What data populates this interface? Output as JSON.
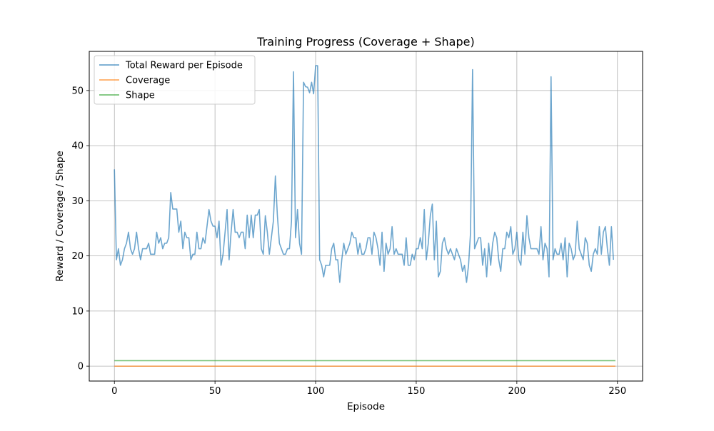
{
  "chart_data": {
    "type": "line",
    "title": "Training Progress (Coverage + Shape)",
    "xlabel": "Episode",
    "ylabel": "Reward / Coverage / Shape",
    "xlim": [
      -12.5,
      262.5
    ],
    "ylim": [
      -2.7,
      57.1
    ],
    "xticks": [
      0,
      50,
      100,
      150,
      200,
      250
    ],
    "yticks": [
      0,
      10,
      20,
      30,
      40,
      50
    ],
    "grid": true,
    "legend_position": "top-left",
    "series": [
      {
        "name": "Total Reward per Episode",
        "color": "#1f77b4",
        "x_start": 0,
        "values": [
          35.7,
          19.3,
          21.3,
          18.3,
          19.3,
          21.3,
          22.3,
          24.3,
          21.3,
          20.3,
          21.3,
          24.3,
          21.3,
          19.3,
          21.3,
          21.3,
          21.3,
          22.3,
          20.3,
          20.3,
          20.3,
          24.3,
          22.3,
          23.3,
          21.3,
          22.3,
          22.3,
          23.3,
          31.5,
          28.5,
          28.5,
          28.5,
          24.3,
          26.3,
          21.3,
          24.3,
          23.3,
          23.3,
          19.3,
          20.3,
          20.3,
          24.3,
          21.3,
          21.3,
          23.3,
          22.3,
          25.3,
          28.4,
          26.3,
          25.4,
          25.4,
          23.3,
          26.3,
          18.3,
          20.3,
          24.3,
          28.4,
          19.3,
          24.3,
          28.4,
          24.3,
          24.3,
          23.3,
          24.3,
          24.3,
          21.3,
          27.4,
          23.3,
          27.4,
          23.3,
          27.4,
          27.4,
          28.4,
          21.3,
          20.3,
          27.3,
          24.3,
          20.3,
          23.3,
          26.3,
          34.5,
          27.3,
          22.3,
          21.3,
          20.3,
          20.3,
          21.3,
          21.3,
          26.3,
          53.4,
          23.3,
          28.4,
          22.3,
          20.3,
          51.5,
          50.7,
          50.6,
          49.6,
          51.5,
          49.4,
          54.5,
          54.5,
          19.3,
          18.3,
          16.2,
          18.3,
          18.3,
          18.3,
          21.3,
          22.3,
          19.3,
          19.3,
          15.2,
          19.3,
          22.3,
          20.3,
          21.3,
          22.3,
          24.3,
          23.3,
          23.3,
          20.3,
          22.3,
          20.3,
          20.3,
          21.3,
          23.3,
          23.3,
          20.3,
          24.3,
          23.3,
          21.3,
          18.3,
          24.3,
          17.2,
          22.3,
          20.3,
          21.3,
          25.3,
          20.3,
          21.3,
          20.3,
          20.3,
          20.3,
          18.3,
          23.3,
          18.3,
          18.3,
          20.3,
          19.3,
          21.3,
          21.3,
          23.3,
          21.3,
          28.4,
          19.3,
          22.3,
          27.3,
          29.4,
          19.3,
          26.3,
          16.2,
          17.2,
          22.3,
          23.3,
          21.3,
          20.3,
          21.3,
          20.3,
          19.3,
          21.3,
          20.3,
          19.3,
          17.2,
          18.3,
          15.2,
          18.3,
          24.3,
          53.8,
          21.3,
          22.3,
          23.3,
          23.3,
          18.3,
          21.3,
          16.2,
          22.3,
          18.3,
          22.3,
          24.3,
          23.3,
          19.3,
          17.2,
          21.3,
          21.3,
          24.3,
          23.3,
          25.3,
          20.3,
          21.3,
          24.3,
          19.3,
          18.3,
          24.3,
          20.3,
          27.3,
          23.3,
          21.3,
          21.3,
          21.3,
          21.3,
          20.3,
          25.3,
          19.3,
          22.3,
          21.3,
          16.2,
          52.5,
          19.3,
          21.3,
          20.3,
          20.3,
          22.3,
          19.3,
          23.3,
          16.2,
          22.3,
          21.3,
          19.3,
          20.3,
          26.3,
          21.3,
          20.3,
          19.3,
          23.3,
          22.3,
          18.3,
          17.2,
          20.3,
          21.3,
          20.3,
          25.3,
          20.3,
          24.3,
          25.3,
          21.3,
          18.3,
          25.3,
          19.3
        ]
      },
      {
        "name": "Coverage",
        "color": "#ff7f0e",
        "x_start": 0,
        "x_end": 249,
        "constant": 0.0
      },
      {
        "name": "Shape",
        "color": "#2ca02c",
        "x_start": 0,
        "x_end": 249,
        "constant": 1.0
      }
    ]
  }
}
